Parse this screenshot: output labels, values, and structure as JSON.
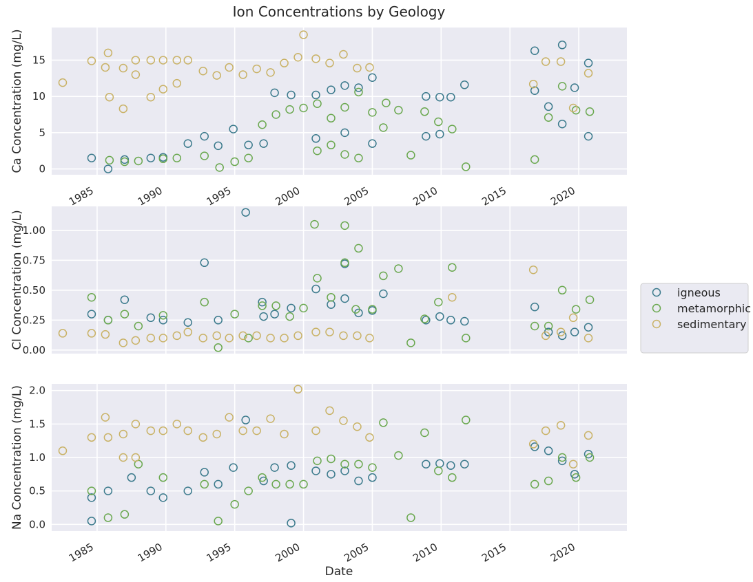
{
  "title": "Ion Concentrations by Geology",
  "xlabel": "Date",
  "legend": {
    "placement": "right",
    "entries": [
      {
        "name": "igneous",
        "color": "#3b7a8c"
      },
      {
        "name": "metamorphic",
        "color": "#6aa84f"
      },
      {
        "name": "sedimentary",
        "color": "#c9b266"
      }
    ]
  },
  "colors": {
    "background": "#eaeaf2",
    "grid": "#ffffff",
    "igneous": "#3b7a8c",
    "metamorphic": "#6aa84f",
    "sedimentary": "#c9b266"
  },
  "chart_data": [
    {
      "type": "scatter",
      "ylabel": "Ca Concentration (mg/L)",
      "xlim": [
        1981.7,
        2023.5
      ],
      "ylim": [
        -0.8,
        19.5
      ],
      "xticks": [
        1985,
        1990,
        1995,
        2000,
        2005,
        2010,
        2015,
        2020
      ],
      "xtick_labels": [
        "1985",
        "1990",
        "1995",
        "2000",
        "2005",
        "2010",
        "2015",
        "2020"
      ],
      "yticks": [
        0,
        5,
        10,
        15
      ],
      "ytick_labels": [
        "0",
        "5",
        "10",
        "15"
      ],
      "grid": true,
      "series": [
        {
          "name": "igneous",
          "x": [
            1984.6,
            1985.8,
            1987.0,
            1988.9,
            1989.8,
            1991.6,
            1992.8,
            1993.8,
            1994.9,
            1996.0,
            1997.1,
            1997.9,
            1999.1,
            2000.9,
            2002.0,
            2003.0,
            2004.0,
            2005.0,
            2008.9,
            2009.9,
            2010.7,
            2011.7,
            2016.8,
            2017.8,
            2018.8,
            2019.7,
            2020.7,
            2000.9,
            2003.0,
            2005.0,
            2008.9,
            2009.9,
            2016.8,
            2018.8,
            2020.7
          ],
          "y": [
            1.5,
            0.0,
            1.3,
            1.5,
            1.6,
            3.5,
            4.5,
            3.2,
            5.5,
            3.3,
            3.5,
            10.5,
            10.2,
            10.2,
            10.9,
            11.5,
            11.2,
            12.6,
            10.0,
            9.9,
            9.9,
            11.6,
            16.3,
            8.6,
            17.1,
            11.2,
            14.6,
            4.2,
            5.0,
            3.5,
            4.5,
            4.8,
            10.8,
            6.2,
            4.5
          ]
        },
        {
          "name": "metamorphic",
          "x": [
            1985.9,
            1987.0,
            1988.0,
            1989.8,
            1990.8,
            1992.8,
            1993.9,
            1995.0,
            1996.0,
            1997.0,
            1998.0,
            1999.0,
            2000.0,
            2001.0,
            2002.0,
            2003.0,
            2004.0,
            2005.0,
            2006.0,
            2006.9,
            2007.8,
            2008.8,
            2009.8,
            2010.8,
            2011.8,
            2016.8,
            2017.8,
            2018.8,
            2019.8,
            2020.8,
            2001.0,
            2002.0,
            2003.0,
            2004.0,
            2005.8
          ],
          "y": [
            1.2,
            1.0,
            1.1,
            1.4,
            1.5,
            1.8,
            0.2,
            1.0,
            1.5,
            6.1,
            7.5,
            8.2,
            8.4,
            9.0,
            7.0,
            8.5,
            10.6,
            7.8,
            9.1,
            8.1,
            1.9,
            7.9,
            6.5,
            5.5,
            0.3,
            1.3,
            7.1,
            11.4,
            8.1,
            7.9,
            2.5,
            3.3,
            2.0,
            1.5,
            5.7
          ]
        },
        {
          "name": "sedimentary",
          "x": [
            1982.5,
            1984.6,
            1985.6,
            1985.8,
            1986.9,
            1987.8,
            1988.9,
            1989.8,
            1990.8,
            1991.6,
            1992.7,
            1993.7,
            1994.6,
            1995.6,
            1996.6,
            1997.6,
            1998.6,
            1999.6,
            2000.0,
            2000.9,
            2001.9,
            2002.9,
            2003.9,
            2004.8,
            2016.7,
            2017.6,
            2018.7,
            2019.6,
            2020.7,
            1985.9,
            1986.9,
            1987.8,
            1988.9,
            1989.8,
            1990.8
          ],
          "y": [
            11.9,
            14.9,
            14.0,
            16.0,
            13.9,
            15.0,
            15.0,
            15.0,
            15.0,
            15.0,
            13.5,
            12.9,
            14.0,
            13.0,
            13.8,
            13.3,
            14.6,
            15.4,
            18.5,
            15.2,
            14.6,
            15.8,
            13.9,
            14.0,
            11.7,
            14.8,
            14.8,
            8.4,
            13.2,
            9.9,
            8.3,
            13.0,
            9.9,
            11.0,
            11.8
          ]
        }
      ]
    },
    {
      "type": "scatter",
      "ylabel": "Cl Concentration (mg/L)",
      "xlim": [
        1981.7,
        2023.5
      ],
      "ylim": [
        -0.03,
        1.2
      ],
      "xticks": [
        1985,
        1990,
        1995,
        2000,
        2005,
        2010,
        2015,
        2020
      ],
      "xtick_labels": [],
      "yticks": [
        0.0,
        0.25,
        0.5,
        0.75,
        1.0
      ],
      "ytick_labels": [
        "0.00",
        "0.25",
        "0.50",
        "0.75",
        "1.00"
      ],
      "grid": true,
      "series": [
        {
          "name": "igneous",
          "x": [
            1984.6,
            1985.8,
            1987.0,
            1988.9,
            1989.8,
            1991.6,
            1992.8,
            1993.8,
            1995.8,
            1997.1,
            1997.9,
            1999.1,
            2000.9,
            2002.0,
            2003.0,
            2004.0,
            2005.0,
            2008.9,
            2009.9,
            2010.7,
            2011.7,
            2016.8,
            2017.8,
            2018.8,
            2019.7,
            2020.7,
            1997.0,
            2003.0,
            2005.8
          ],
          "y": [
            0.3,
            0.25,
            0.42,
            0.27,
            0.25,
            0.23,
            0.73,
            0.25,
            1.15,
            0.28,
            0.3,
            0.35,
            0.51,
            0.38,
            0.43,
            0.31,
            0.33,
            0.25,
            0.28,
            0.25,
            0.24,
            0.36,
            0.15,
            0.12,
            0.15,
            0.19,
            0.4,
            0.72,
            0.47
          ]
        },
        {
          "name": "metamorphic",
          "x": [
            1984.6,
            1985.8,
            1987.0,
            1988.0,
            1989.8,
            1992.8,
            1993.8,
            1995.0,
            1996.0,
            1997.0,
            1998.0,
            1999.0,
            2000.0,
            2000.8,
            2001.0,
            2002.0,
            2003.0,
            2004.0,
            2005.0,
            2005.8,
            2006.9,
            2007.8,
            2008.8,
            2009.8,
            2010.8,
            2011.8,
            2016.8,
            2017.8,
            2018.8,
            2019.8,
            2020.8,
            2003.0,
            2003.8
          ],
          "y": [
            0.44,
            0.25,
            0.3,
            0.2,
            0.29,
            0.4,
            0.02,
            0.3,
            0.1,
            0.37,
            0.37,
            0.28,
            0.35,
            1.05,
            0.6,
            0.44,
            1.04,
            0.85,
            0.34,
            0.62,
            0.68,
            0.06,
            0.26,
            0.4,
            0.69,
            0.1,
            0.2,
            0.2,
            0.5,
            0.34,
            0.42,
            0.73,
            0.34
          ]
        },
        {
          "name": "sedimentary",
          "x": [
            1982.5,
            1984.6,
            1985.6,
            1986.9,
            1987.8,
            1988.9,
            1989.8,
            1990.8,
            1991.6,
            1992.7,
            1993.7,
            1994.6,
            1995.6,
            1996.6,
            1997.6,
            1998.6,
            1999.6,
            2000.9,
            2001.9,
            2002.9,
            2003.9,
            2004.8,
            2010.8,
            2016.7,
            2017.6,
            2018.7,
            2019.6,
            2020.7
          ],
          "y": [
            0.14,
            0.14,
            0.13,
            0.06,
            0.08,
            0.1,
            0.1,
            0.12,
            0.15,
            0.1,
            0.12,
            0.1,
            0.12,
            0.12,
            0.1,
            0.1,
            0.12,
            0.15,
            0.15,
            0.12,
            0.12,
            0.1,
            0.44,
            0.67,
            0.12,
            0.15,
            0.27,
            0.1
          ]
        }
      ]
    },
    {
      "type": "scatter",
      "ylabel": "Na Concentration (mg/L)",
      "xlim": [
        1981.7,
        2023.5
      ],
      "ylim": [
        -0.1,
        2.1
      ],
      "xticks": [
        1985,
        1990,
        1995,
        2000,
        2005,
        2010,
        2015,
        2020
      ],
      "xtick_labels": [
        "1985",
        "1990",
        "1995",
        "2000",
        "2005",
        "2010",
        "2015",
        "2020"
      ],
      "yticks": [
        0.0,
        0.5,
        1.0,
        1.5,
        2.0
      ],
      "ytick_labels": [
        "0.0",
        "0.5",
        "1.0",
        "1.5",
        "2.0"
      ],
      "grid": true,
      "series": [
        {
          "name": "igneous",
          "x": [
            1984.6,
            1985.8,
            1987.5,
            1988.9,
            1989.8,
            1991.6,
            1992.8,
            1993.8,
            1994.9,
            1995.8,
            1997.1,
            1997.9,
            1999.1,
            2000.9,
            2002.0,
            2003.0,
            2004.0,
            2005.0,
            2008.9,
            2009.9,
            2010.7,
            2011.7,
            2016.8,
            2017.8,
            2018.8,
            2019.7,
            2020.7,
            1984.6,
            1999.1
          ],
          "y": [
            0.4,
            0.5,
            0.7,
            0.5,
            0.4,
            0.5,
            0.78,
            0.6,
            0.85,
            1.56,
            0.65,
            0.85,
            0.88,
            0.8,
            0.75,
            0.8,
            0.65,
            0.7,
            0.9,
            0.91,
            0.88,
            0.9,
            1.16,
            1.1,
            0.95,
            0.75,
            1.05,
            0.05,
            0.02
          ]
        },
        {
          "name": "metamorphic",
          "x": [
            1984.6,
            1985.8,
            1987.0,
            1988.0,
            1989.8,
            1992.8,
            1993.8,
            1995.0,
            1996.0,
            1997.0,
            1998.0,
            1999.0,
            2000.0,
            2001.0,
            2002.0,
            2003.0,
            2004.0,
            2005.0,
            2005.8,
            2006.9,
            2007.8,
            2008.8,
            2009.8,
            2010.8,
            2011.8,
            2016.8,
            2017.8,
            2018.8,
            2019.8,
            2020.8
          ],
          "y": [
            0.5,
            0.1,
            0.15,
            0.9,
            0.7,
            0.6,
            0.05,
            0.3,
            0.5,
            0.7,
            0.6,
            0.6,
            0.6,
            0.95,
            0.98,
            0.9,
            0.9,
            0.85,
            1.52,
            1.03,
            0.1,
            1.37,
            0.8,
            0.7,
            1.56,
            0.6,
            0.65,
            1.0,
            0.7,
            1.0
          ]
        },
        {
          "name": "sedimentary",
          "x": [
            1982.5,
            1984.6,
            1985.6,
            1985.8,
            1986.9,
            1987.8,
            1988.9,
            1989.8,
            1990.8,
            1991.6,
            1992.7,
            1993.7,
            1994.6,
            1995.6,
            1996.6,
            1997.6,
            1998.6,
            1999.6,
            2000.9,
            2001.9,
            2002.9,
            2003.9,
            2004.8,
            2016.7,
            2017.6,
            2018.7,
            2019.6,
            2020.7,
            1986.9,
            1987.8
          ],
          "y": [
            1.1,
            1.3,
            1.6,
            1.3,
            1.35,
            1.5,
            1.4,
            1.4,
            1.5,
            1.4,
            1.3,
            1.35,
            1.6,
            1.4,
            1.4,
            1.58,
            1.35,
            2.02,
            1.4,
            1.7,
            1.55,
            1.46,
            1.3,
            1.2,
            1.4,
            1.48,
            0.9,
            1.33,
            1.0,
            1.0
          ]
        }
      ]
    }
  ]
}
